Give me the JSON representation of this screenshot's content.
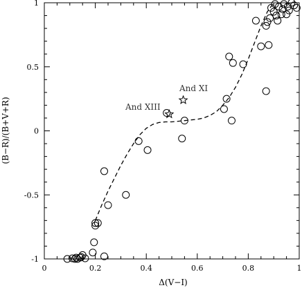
{
  "chart_data": {
    "type": "scatter",
    "xlabel": "Δ(V−I)",
    "ylabel": "(B−R)/(B+V+R)",
    "xlim": [
      0,
      1
    ],
    "ylim": [
      -1,
      1
    ],
    "xticks": [
      0,
      0.2,
      0.4,
      0.6,
      0.8,
      1
    ],
    "yticks": [
      -1,
      -0.5,
      0,
      0.5,
      1
    ],
    "xtick_labels": [
      "0",
      "0.2",
      "0.4",
      "0.6",
      "0.8",
      "1"
    ],
    "ytick_labels": [
      "-1",
      "-0.5",
      "0",
      "0.5",
      "1"
    ],
    "series": [
      {
        "marker": "circle",
        "x": [
          0.09,
          0.11,
          0.12,
          0.125,
          0.13,
          0.14,
          0.145,
          0.15,
          0.16,
          0.19,
          0.195,
          0.2,
          0.2,
          0.21,
          0.235,
          0.235,
          0.25,
          0.32,
          0.37,
          0.405,
          0.48,
          0.54,
          0.55,
          0.705,
          0.715,
          0.725,
          0.735,
          0.74,
          0.78,
          0.83,
          0.85,
          0.87,
          0.87,
          0.875,
          0.88,
          0.885,
          0.89,
          0.9,
          0.905,
          0.91,
          0.915,
          0.92,
          0.93,
          0.935,
          0.94,
          0.95,
          0.955,
          0.96,
          0.97,
          0.98,
          0.99
        ],
        "y": [
          -1.0,
          -0.995,
          -1.0,
          -0.99,
          -1.0,
          -0.99,
          -0.985,
          -0.97,
          -0.995,
          -0.95,
          -0.87,
          -0.72,
          -0.74,
          -0.72,
          -0.98,
          -0.315,
          -0.58,
          -0.5,
          -0.08,
          -0.15,
          0.14,
          -0.06,
          0.08,
          0.17,
          0.25,
          0.58,
          0.08,
          0.53,
          0.52,
          0.86,
          0.66,
          0.82,
          0.31,
          0.85,
          0.67,
          0.88,
          0.96,
          0.93,
          0.99,
          0.9,
          0.86,
          0.97,
          0.91,
          0.95,
          0.99,
          0.91,
          0.97,
          0.94,
          1.0,
          0.98,
          0.96
        ]
      },
      {
        "marker": "star",
        "x": [
          0.49,
          0.545
        ],
        "y": [
          0.13,
          0.24
        ]
      },
      {
        "type": "line",
        "style": "dashed",
        "x": [
          0.2,
          0.225,
          0.25,
          0.275,
          0.3,
          0.325,
          0.35,
          0.375,
          0.4,
          0.425,
          0.45,
          0.475,
          0.5,
          0.525,
          0.55,
          0.575,
          0.6,
          0.625,
          0.65,
          0.675,
          0.7,
          0.725,
          0.75,
          0.775,
          0.8,
          0.825,
          0.85,
          0.875,
          0.9
        ],
        "y": [
          -0.7,
          -0.58,
          -0.47,
          -0.37,
          -0.27,
          -0.18,
          -0.1,
          -0.03,
          0.02,
          0.05,
          0.065,
          0.07,
          0.07,
          0.075,
          0.08,
          0.085,
          0.09,
          0.1,
          0.12,
          0.15,
          0.2,
          0.26,
          0.34,
          0.44,
          0.56,
          0.69,
          0.82,
          0.93,
          1.0
        ]
      }
    ],
    "annotations": [
      {
        "text": "And XI",
        "x": 0.545,
        "y": 0.24
      },
      {
        "text": "And XIII",
        "x": 0.49,
        "y": 0.13
      }
    ]
  }
}
